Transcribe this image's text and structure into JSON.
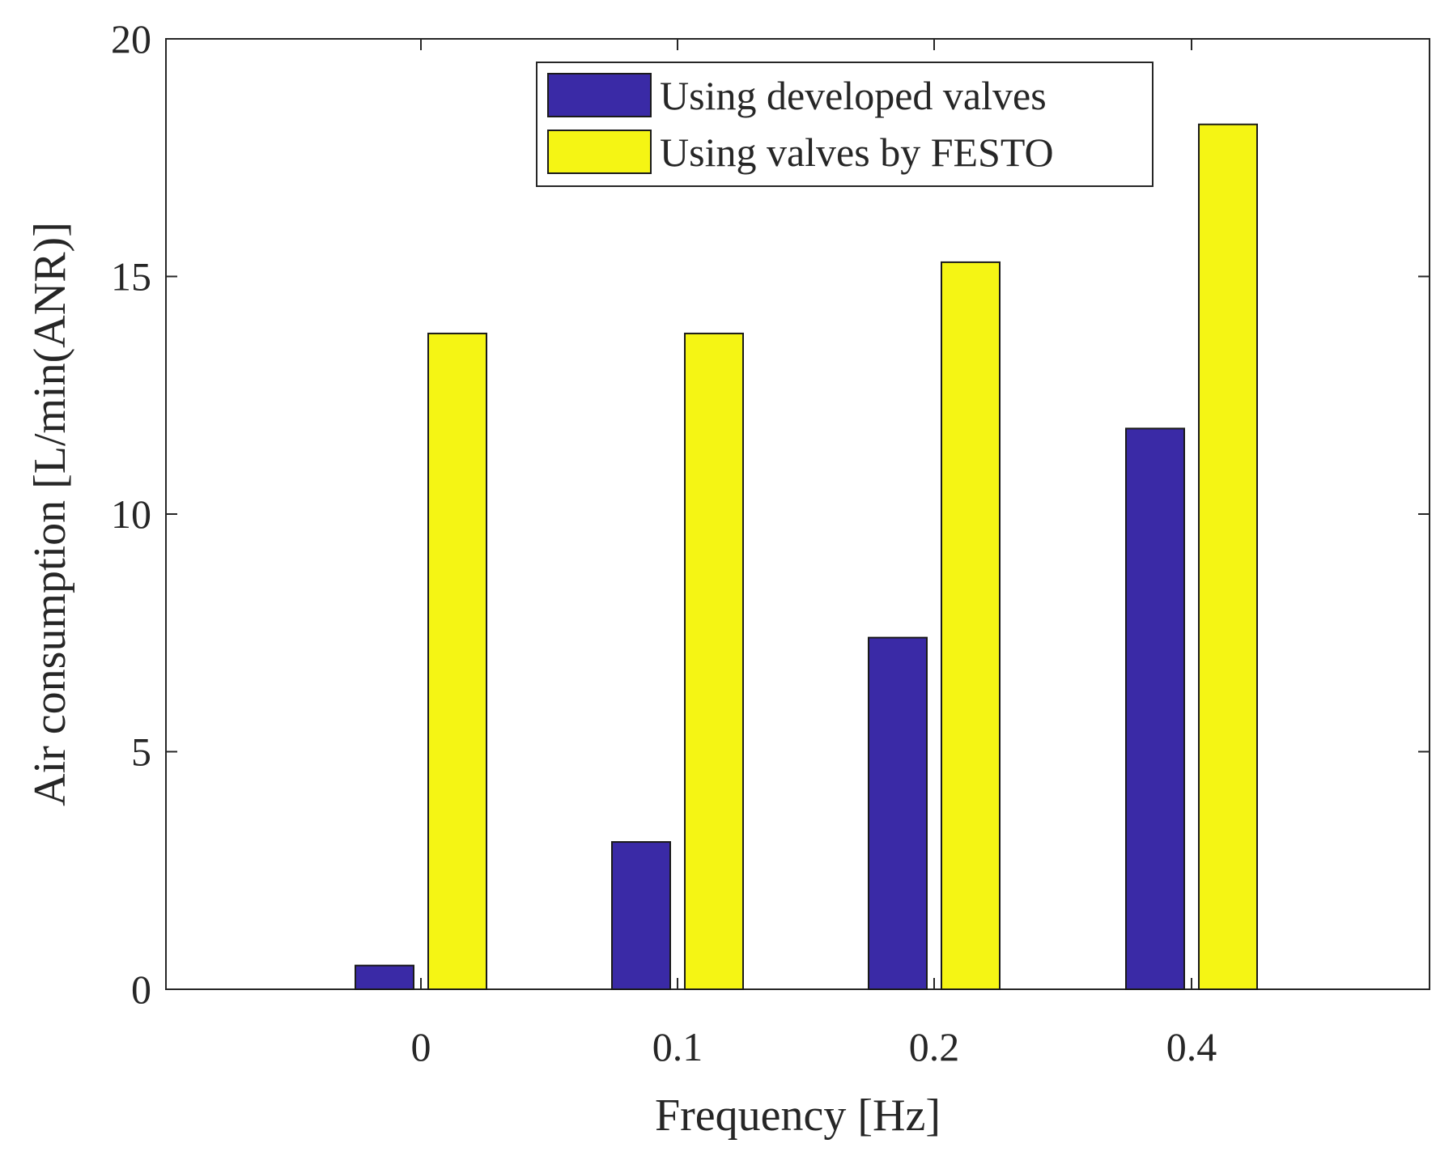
{
  "chart_data": {
    "type": "bar",
    "title": "",
    "xlabel": "Frequency [Hz]",
    "ylabel": "Air consumption [L/min(ANR)]",
    "categories": [
      "0",
      "0.1",
      "0.2",
      "0.4"
    ],
    "series": [
      {
        "name": "Using developed valves",
        "color": "#3a2aa6",
        "values": [
          0.5,
          3.1,
          7.4,
          11.8
        ]
      },
      {
        "name": "Using valves by FESTO",
        "color": "#f5f514",
        "values": [
          13.8,
          13.8,
          15.3,
          18.2
        ]
      }
    ],
    "ylim": [
      0,
      20
    ],
    "yticks": [
      "0",
      "5",
      "10",
      "15",
      "20"
    ],
    "grid": false,
    "legend_position": "top-right"
  }
}
